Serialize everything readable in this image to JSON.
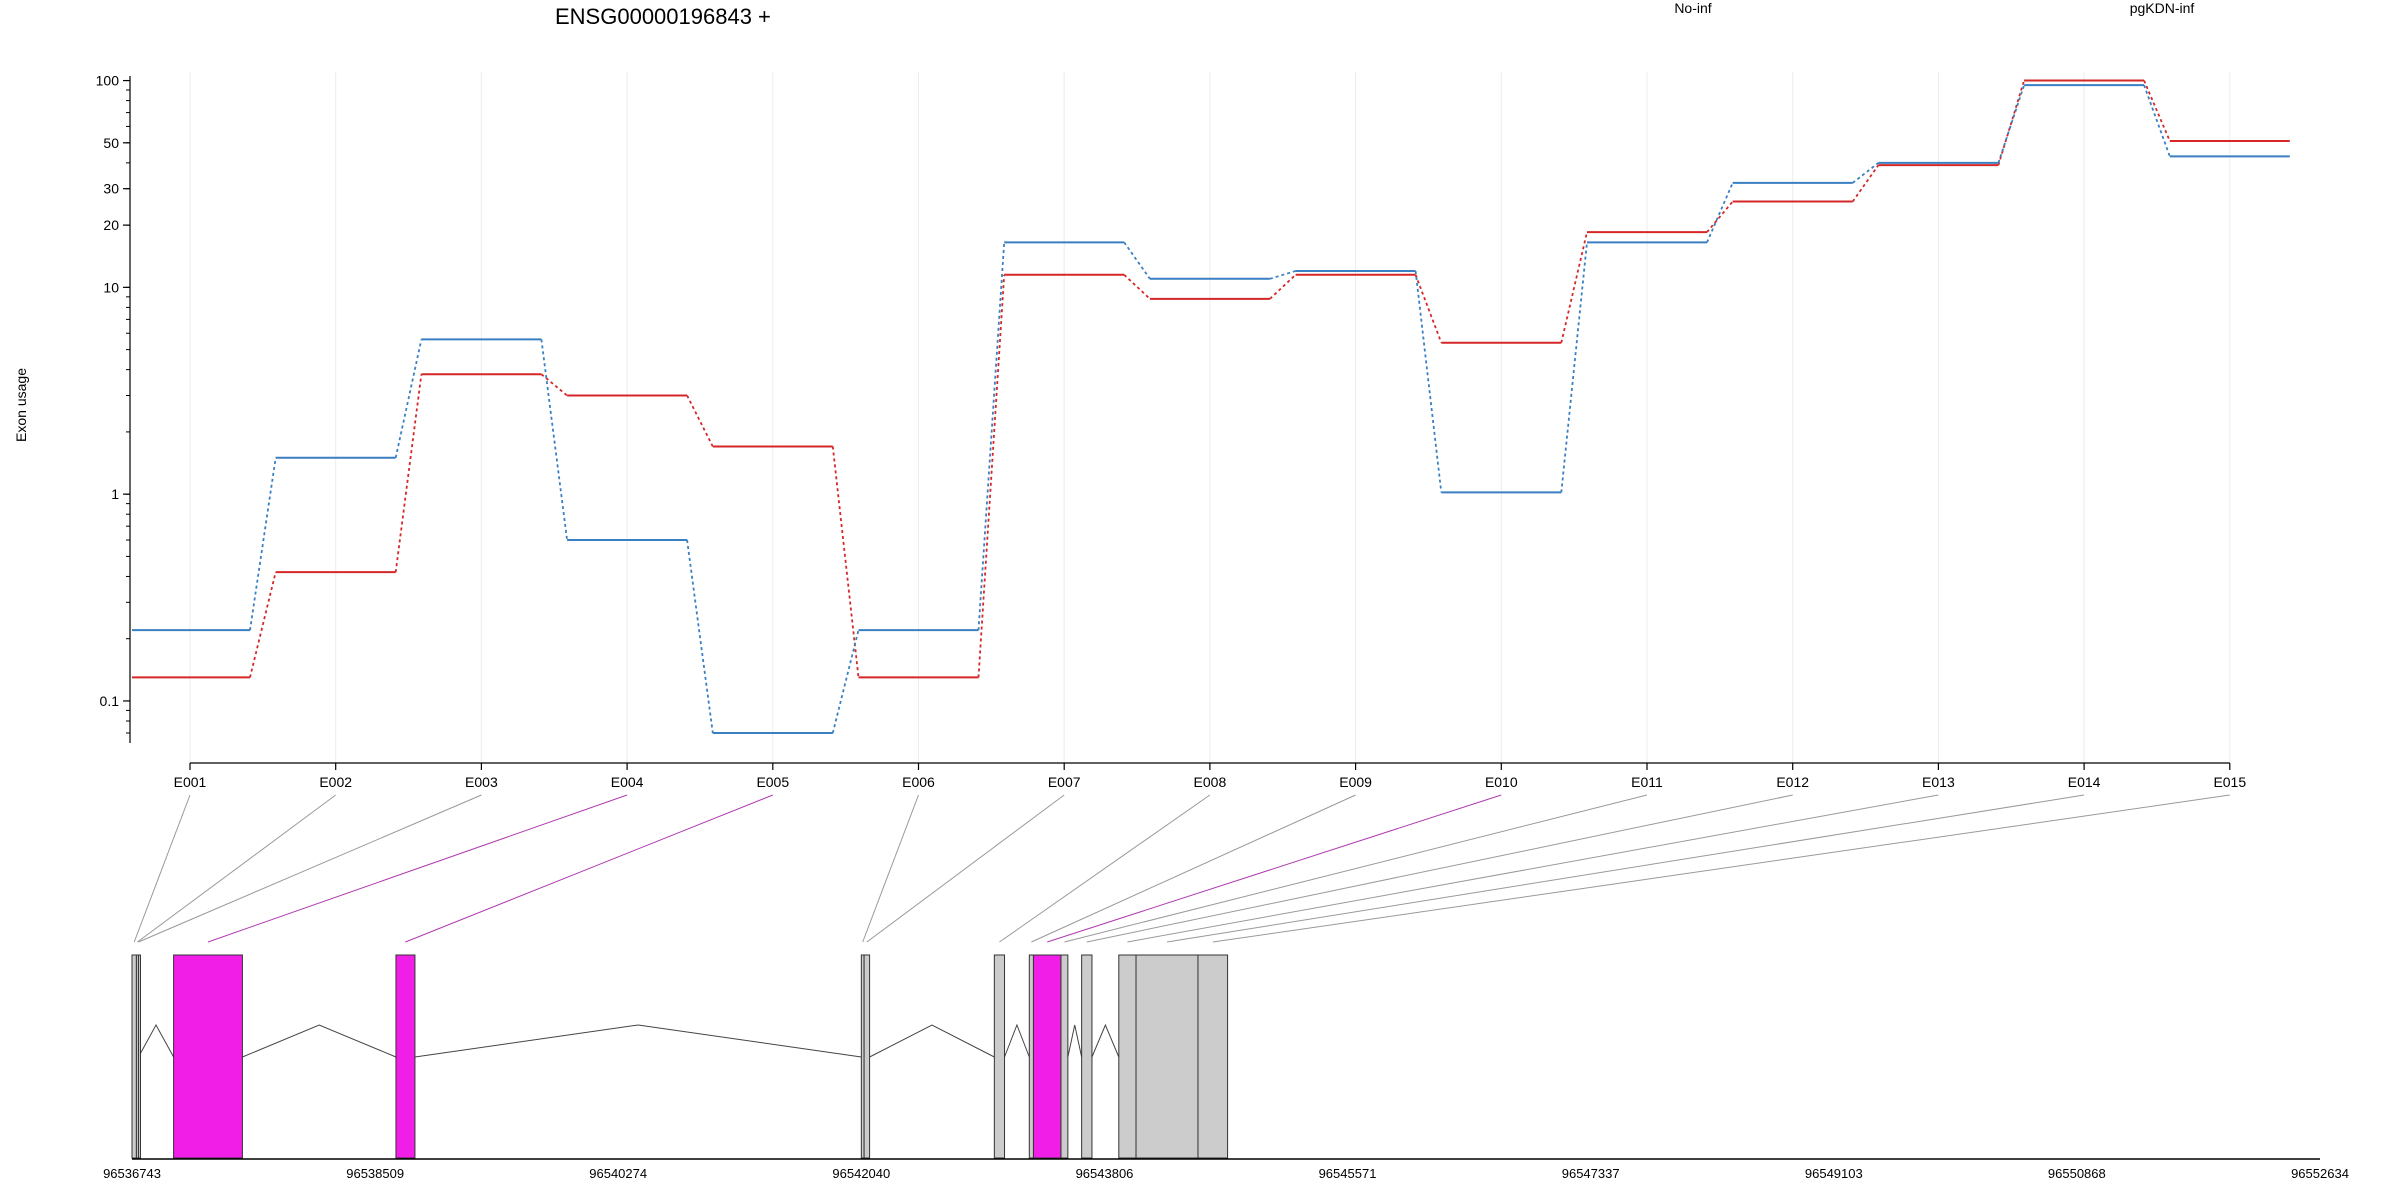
{
  "chart_data": {
    "type": "line",
    "title": "ENSG00000196843 +",
    "xlabel": "",
    "ylabel": "Exon usage",
    "y_scale": "log",
    "ylim": [
      0.07,
      110
    ],
    "y_ticks": [
      0.1,
      1,
      10,
      20,
      30,
      50,
      100
    ],
    "y_tick_labels": [
      "0.1",
      "1",
      "10",
      "20",
      "30",
      "50",
      "100"
    ],
    "grid": "vertical",
    "legend_position": "top",
    "categories": [
      "E001",
      "E002",
      "E003",
      "E004",
      "E005",
      "E006",
      "E007",
      "E008",
      "E009",
      "E010",
      "E011",
      "E012",
      "E013",
      "E014",
      "E015"
    ],
    "series": [
      {
        "name": "No-inf",
        "color": "#d62728",
        "values": [
          0.13,
          0.42,
          3.8,
          3.0,
          1.7,
          0.13,
          11.5,
          8.8,
          11.5,
          5.4,
          18.5,
          26,
          39,
          100,
          51
        ]
      },
      {
        "name": "pgKDN-inf",
        "color": "#3a7fc1",
        "values": [
          0.22,
          1.5,
          5.6,
          0.6,
          0.07,
          0.22,
          16.5,
          11,
          12,
          1.02,
          16.5,
          32,
          40,
          95,
          43
        ]
      }
    ],
    "gene_model": {
      "coordinates": [
        "96536743",
        "96538509",
        "96540274",
        "96542040",
        "96543806",
        "96545571",
        "96547337",
        "96549103",
        "96550868",
        "96552634"
      ],
      "highlight_color": "#f01ee6",
      "exon_color": "#cccccc",
      "exons": [
        {
          "label": "E001",
          "start": 96536743,
          "end": 96536775,
          "highlight": false
        },
        {
          "label": "E002",
          "start": 96536775,
          "end": 96536790,
          "highlight": false
        },
        {
          "label": "E003",
          "start": 96536790,
          "end": 96536790,
          "highlight": false
        },
        {
          "label": "E004",
          "start": 96537045,
          "end": 96537545,
          "highlight": true
        },
        {
          "label": "E005",
          "start": 96538660,
          "end": 96538798,
          "highlight": true
        },
        {
          "label": "E006",
          "start": 96542040,
          "end": 96542060,
          "highlight": false
        },
        {
          "label": "E007",
          "start": 96542060,
          "end": 96542100,
          "highlight": false
        },
        {
          "label": "E008",
          "start": 96543006,
          "end": 96543080,
          "highlight": false
        },
        {
          "label": "E009",
          "start": 96543260,
          "end": 96543290,
          "highlight": false
        },
        {
          "label": "E010",
          "start": 96543290,
          "end": 96543490,
          "highlight": true
        },
        {
          "label": "E011",
          "start": 96543490,
          "end": 96543540,
          "highlight": false
        },
        {
          "label": "E012",
          "start": 96543640,
          "end": 96543715,
          "highlight": false
        },
        {
          "label": "E013",
          "start": 96543910,
          "end": 96544035,
          "highlight": false
        },
        {
          "label": "E014",
          "start": 96544035,
          "end": 96544485,
          "highlight": false
        },
        {
          "label": "E015",
          "start": 96544485,
          "end": 96544700,
          "highlight": false
        }
      ]
    }
  }
}
